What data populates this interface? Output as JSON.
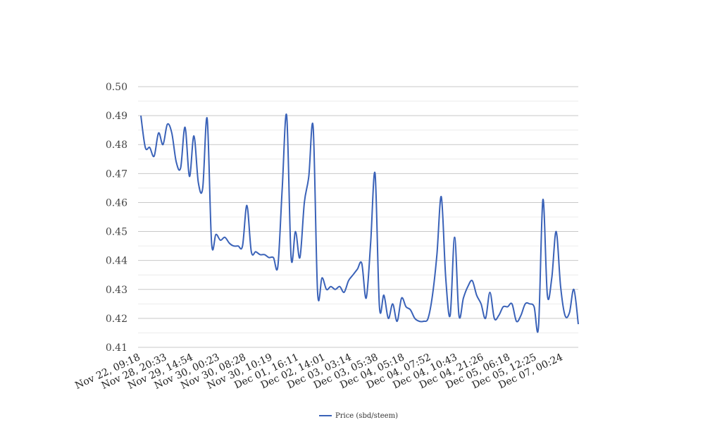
{
  "chart_data": {
    "type": "line",
    "title": "",
    "xlabel": "",
    "ylabel": "",
    "ylim": [
      0.41,
      0.5
    ],
    "yticks": [
      "0.50",
      "0.49",
      "0.48",
      "0.47",
      "0.46",
      "0.45",
      "0.44",
      "0.43",
      "0.42",
      "0.41"
    ],
    "grid": "horizontal",
    "legend": "bottom-center",
    "colors": {
      "series": "#3a62b8",
      "grid_major": "#c8c8c8",
      "grid_minor": "#ececec"
    },
    "x_tick_labels": [
      "Nov 22, 09:18",
      "Nov 28, 20:33",
      "Nov 29, 14:54",
      "Nov 30, 00:23",
      "Nov 30, 08:28",
      "Nov 30, 10:19",
      "Dec 01, 16:11",
      "Dec 02, 14:01",
      "Dec 03, 03:14",
      "Dec 03, 05:38",
      "Dec 04, 05:18",
      "Dec 04, 07:52",
      "Dec 04, 10:43",
      "Dec 04, 21:26",
      "Dec 05, 06:18",
      "Dec 05, 12:25",
      "Dec 07, 00:24"
    ],
    "series": [
      {
        "name": "Price (sbd/steem)",
        "values": [
          0.49,
          0.479,
          0.479,
          0.476,
          0.484,
          0.48,
          0.487,
          0.484,
          0.474,
          0.472,
          0.486,
          0.469,
          0.483,
          0.467,
          0.465,
          0.489,
          0.446,
          0.449,
          0.447,
          0.448,
          0.446,
          0.445,
          0.445,
          0.445,
          0.459,
          0.443,
          0.443,
          0.442,
          0.442,
          0.441,
          0.441,
          0.438,
          0.465,
          0.49,
          0.441,
          0.45,
          0.441,
          0.46,
          0.469,
          0.486,
          0.429,
          0.434,
          0.43,
          0.431,
          0.43,
          0.431,
          0.429,
          0.433,
          0.435,
          0.437,
          0.439,
          0.427,
          0.446,
          0.47,
          0.424,
          0.428,
          0.42,
          0.425,
          0.419,
          0.427,
          0.424,
          0.423,
          0.42,
          0.419,
          0.419,
          0.42,
          0.428,
          0.442,
          0.462,
          0.434,
          0.421,
          0.448,
          0.421,
          0.427,
          0.431,
          0.433,
          0.428,
          0.425,
          0.42,
          0.429,
          0.42,
          0.421,
          0.424,
          0.424,
          0.425,
          0.419,
          0.421,
          0.425,
          0.425,
          0.424,
          0.417,
          0.461,
          0.428,
          0.434,
          0.45,
          0.431,
          0.421,
          0.422,
          0.43,
          0.418
        ]
      }
    ]
  }
}
